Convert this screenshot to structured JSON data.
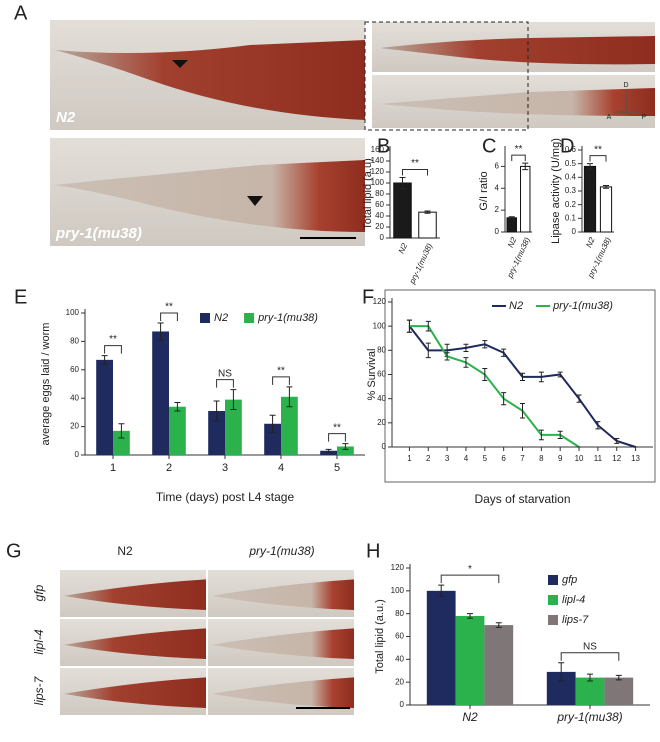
{
  "panels": {
    "A": {
      "label": "A",
      "top_label": "N2",
      "bottom_label": "pry-1(mu38)",
      "compass": [
        "D",
        "A",
        "P"
      ]
    },
    "G": {
      "label": "G",
      "columns": [
        "N2",
        "pry-1(mu38)"
      ],
      "rows": [
        "gfp",
        "lipl-4",
        "lips-7"
      ]
    }
  },
  "chart_data": [
    {
      "type": "bar",
      "label": "B",
      "ylabel": "Total lipid (a.u)",
      "categories": [
        "N2",
        "pry-1(mu38)"
      ],
      "values": [
        100,
        47
      ],
      "errors": [
        10,
        2
      ],
      "colors": [
        "#1a1a1a",
        "#ffffff"
      ],
      "significance": "**",
      "ylim": [
        0,
        160
      ],
      "yticks": [
        0,
        20,
        40,
        60,
        80,
        100,
        120,
        140,
        160
      ]
    },
    {
      "type": "bar",
      "label": "C",
      "ylabel": "G/I ratio",
      "categories": [
        "N2",
        "pry-1(mu38)"
      ],
      "values": [
        1.3,
        6.0
      ],
      "errors": [
        0.1,
        0.3
      ],
      "colors": [
        "#1a1a1a",
        "#ffffff"
      ],
      "significance": "**",
      "ylim": [
        0,
        7.5
      ],
      "yticks": [
        0,
        2,
        4,
        6
      ]
    },
    {
      "type": "bar",
      "label": "D",
      "ylabel": "Lipase activity (U/mg)",
      "categories": [
        "N2",
        "pry-1(mu38)"
      ],
      "values": [
        0.48,
        0.33
      ],
      "errors": [
        0.02,
        0.01
      ],
      "colors": [
        "#1a1a1a",
        "#ffffff"
      ],
      "significance": "**",
      "ylim": [
        0,
        0.6
      ],
      "yticks": [
        0,
        0.1,
        0.2,
        0.3,
        0.4,
        0.5,
        0.6
      ]
    },
    {
      "type": "grouped_bar",
      "label": "E",
      "ylabel": "average eggs laid / worm",
      "xlabel": "Time (days) post L4 stage",
      "categories": [
        1,
        2,
        3,
        4,
        5
      ],
      "series": [
        {
          "name": "N2",
          "color": "#1f2a5e",
          "values": [
            67,
            87,
            31,
            22,
            3
          ],
          "errors": [
            3,
            6,
            7,
            6,
            1
          ]
        },
        {
          "name": "pry-1(mu38)",
          "color": "#2bb24c",
          "values": [
            17,
            34,
            39,
            41,
            6
          ],
          "errors": [
            5,
            3,
            7,
            7,
            2
          ]
        }
      ],
      "significance": [
        "**",
        "**",
        "NS",
        "**",
        "**"
      ],
      "ylim": [
        0,
        100
      ],
      "yticks": [
        0,
        20,
        40,
        60,
        80,
        100
      ]
    },
    {
      "type": "line",
      "label": "F",
      "ylabel": "% Survival",
      "xlabel": "Days of starvation",
      "x": [
        1,
        2,
        3,
        4,
        5,
        6,
        7,
        8,
        9,
        10,
        11,
        12,
        13
      ],
      "series": [
        {
          "name": "N2",
          "color": "#1f2a5e",
          "values": [
            100,
            80,
            80,
            82,
            85,
            78,
            58,
            58,
            60,
            40,
            18,
            5,
            0
          ],
          "errors": [
            5,
            6,
            5,
            3,
            3,
            3,
            3,
            4,
            2,
            3,
            3,
            2,
            0
          ]
        },
        {
          "name": "pry-1(mu38)",
          "color": "#2bb24c",
          "values": [
            100,
            100,
            75,
            70,
            60,
            40,
            30,
            10,
            10,
            0,
            null,
            null,
            null
          ],
          "errors": [
            5,
            4,
            3,
            4,
            5,
            5,
            6,
            4,
            3,
            0,
            null,
            null,
            null
          ]
        }
      ],
      "xlim": [
        0.5,
        13.5
      ],
      "xticks": [
        1,
        2,
        3,
        4,
        5,
        6,
        7,
        8,
        9,
        10,
        11,
        12,
        13
      ],
      "ylim": [
        0,
        120
      ],
      "yticks": [
        0,
        20,
        40,
        60,
        80,
        100,
        120
      ]
    },
    {
      "type": "grouped_bar",
      "label": "H",
      "ylabel": "Total lipid (a.u.)",
      "categories": [
        "N2",
        "pry-1(mu38)"
      ],
      "series": [
        {
          "name": "gfp",
          "color": "#1f2a5e",
          "values": [
            100,
            29
          ],
          "errors": [
            5,
            8
          ]
        },
        {
          "name": "lipl-4",
          "color": "#2bb24c",
          "values": [
            78,
            24
          ],
          "errors": [
            2,
            3
          ]
        },
        {
          "name": "lips-7",
          "color": "#7f7777",
          "values": [
            70,
            24
          ],
          "errors": [
            2,
            2
          ]
        }
      ],
      "significance": [
        "*",
        "NS"
      ],
      "ylim": [
        0,
        120
      ],
      "yticks": [
        0,
        20,
        40,
        60,
        80,
        100,
        120
      ]
    }
  ]
}
